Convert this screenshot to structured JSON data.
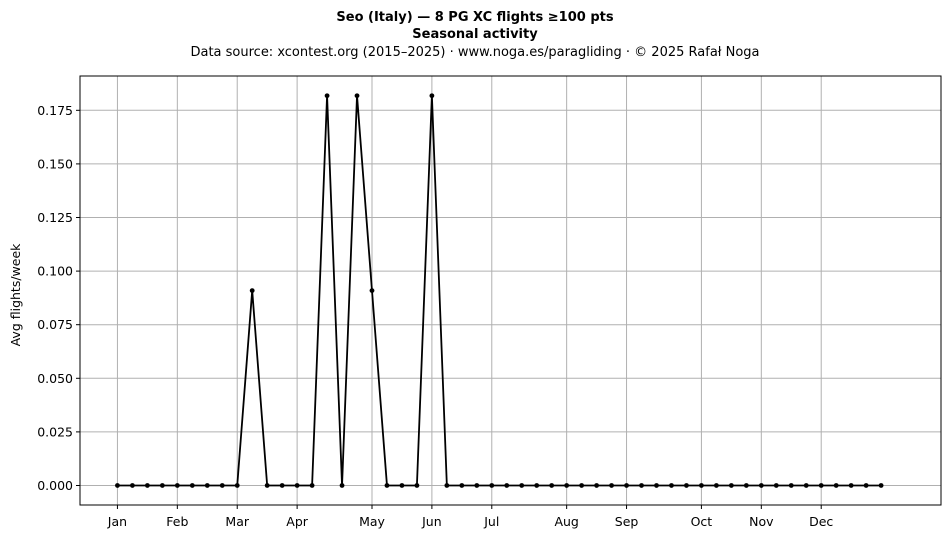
{
  "chart_data": {
    "type": "line",
    "title": "Seo (Italy)  —  8 PG XC flights ≥100 pts",
    "subtitle": "Seasonal activity",
    "source_line": "Data source: xcontest.org (2015–2025)  ·  www.noga.es/paragliding  ·  © 2025 Rafał Noga",
    "xlabel": "",
    "ylabel": "Avg flights/week",
    "x_range": [
      -2.5,
      55
    ],
    "ylim": [
      -0.0091,
      0.191
    ],
    "y_ticks": [
      0.0,
      0.025,
      0.05,
      0.075,
      0.1,
      0.125,
      0.15,
      0.175
    ],
    "y_tick_labels": [
      "0.000",
      "0.025",
      "0.050",
      "0.075",
      "0.100",
      "0.125",
      "0.150",
      "0.175"
    ],
    "x_ticks": [
      {
        "label": "Jan",
        "week": 0
      },
      {
        "label": "Feb",
        "week": 4
      },
      {
        "label": "Mar",
        "week": 8
      },
      {
        "label": "Apr",
        "week": 12
      },
      {
        "label": "May",
        "week": 17
      },
      {
        "label": "Jun",
        "week": 21
      },
      {
        "label": "Jul",
        "week": 25
      },
      {
        "label": "Aug",
        "week": 30
      },
      {
        "label": "Sep",
        "week": 34
      },
      {
        "label": "Oct",
        "week": 39
      },
      {
        "label": "Nov",
        "week": 43
      },
      {
        "label": "Dec",
        "week": 47
      }
    ],
    "grid": true,
    "series": [
      {
        "x": [
          0,
          1,
          2,
          3,
          4,
          5,
          6,
          7,
          8,
          9,
          10,
          11,
          12,
          13,
          14,
          15,
          16,
          17,
          18,
          19,
          20,
          21,
          22,
          23,
          24,
          25,
          26,
          27,
          28,
          29,
          30,
          31,
          32,
          33,
          34,
          35,
          36,
          37,
          38,
          39,
          40,
          41,
          42,
          43,
          44,
          45,
          46,
          47,
          48,
          49,
          50,
          51
        ],
        "values": [
          0,
          0,
          0,
          0,
          0,
          0,
          0,
          0,
          0,
          0.0909,
          0,
          0,
          0,
          0,
          0.1818,
          0,
          0.1818,
          0.0909,
          0,
          0,
          0,
          0.1818,
          0,
          0,
          0,
          0,
          0,
          0,
          0,
          0,
          0,
          0,
          0,
          0,
          0,
          0,
          0,
          0,
          0,
          0,
          0,
          0,
          0,
          0,
          0,
          0,
          0,
          0,
          0,
          0,
          0,
          0
        ],
        "color": "#000000"
      }
    ]
  }
}
